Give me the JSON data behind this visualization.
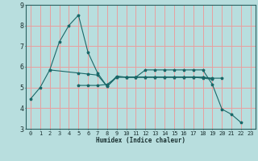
{
  "background_color": "#b8dede",
  "grid_color": "#e8a0a0",
  "line_color": "#1a6868",
  "xlabel": "Humidex (Indice chaleur)",
  "xlim": [
    -0.5,
    23.5
  ],
  "ylim": [
    3,
    9
  ],
  "yticks": [
    3,
    4,
    5,
    6,
    7,
    8,
    9
  ],
  "xticks": [
    0,
    1,
    2,
    3,
    4,
    5,
    6,
    7,
    8,
    9,
    10,
    11,
    12,
    13,
    14,
    15,
    16,
    17,
    18,
    19,
    20,
    21,
    22,
    23
  ],
  "series": [
    {
      "x": [
        0,
        1,
        2,
        3,
        4,
        5,
        6,
        7,
        8,
        9,
        10,
        11,
        12,
        13,
        14,
        15,
        16,
        17,
        18,
        19,
        20,
        21,
        22
      ],
      "y": [
        4.45,
        5.0,
        5.85,
        7.2,
        8.0,
        8.5,
        6.7,
        5.7,
        5.05,
        5.5,
        5.5,
        5.5,
        5.85,
        5.85,
        5.85,
        5.85,
        5.85,
        5.85,
        5.85,
        5.15,
        3.95,
        3.7,
        3.3
      ]
    },
    {
      "x": [
        2,
        5,
        6,
        7,
        8,
        9,
        10,
        11,
        12,
        13,
        14,
        15,
        16,
        17,
        18,
        19,
        20
      ],
      "y": [
        5.85,
        5.7,
        5.65,
        5.6,
        5.05,
        5.55,
        5.5,
        5.5,
        5.5,
        5.5,
        5.5,
        5.5,
        5.5,
        5.5,
        5.5,
        5.45,
        5.45
      ]
    },
    {
      "x": [
        5,
        6,
        7,
        8,
        9,
        10,
        11,
        12,
        13,
        14,
        15,
        16,
        17,
        18,
        19
      ],
      "y": [
        5.1,
        5.1,
        5.1,
        5.15,
        5.5,
        5.5,
        5.5,
        5.5,
        5.5,
        5.5,
        5.5,
        5.5,
        5.5,
        5.45,
        5.4
      ]
    },
    {
      "x": [
        10,
        11,
        12,
        13,
        14,
        15,
        16,
        17,
        18,
        19
      ],
      "y": [
        5.5,
        5.5,
        5.5,
        5.5,
        5.5,
        5.5,
        5.5,
        5.5,
        5.48,
        5.42
      ]
    }
  ]
}
